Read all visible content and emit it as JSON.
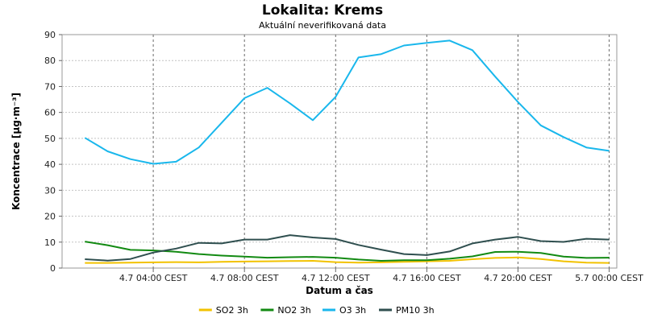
{
  "chart_data": {
    "type": "line",
    "title": "Lokalita: Krems",
    "subtitle": "Aktuální neverifikovaná data",
    "xlabel": "Datum a čas",
    "ylabel": "Koncentrace [µg·m⁻³]",
    "ylim": [
      0,
      90
    ],
    "yticks": [
      0,
      10,
      20,
      30,
      40,
      50,
      60,
      70,
      80,
      90
    ],
    "xlim": [
      "4.7 00:00",
      "5.7 00:20"
    ],
    "x": [
      "4.7 01:00",
      "4.7 02:00",
      "4.7 03:00",
      "4.7 04:00",
      "4.7 05:00",
      "4.7 06:00",
      "4.7 07:00",
      "4.7 08:00",
      "4.7 09:00",
      "4.7 10:00",
      "4.7 11:00",
      "4.7 12:00",
      "4.7 13:00",
      "4.7 14:00",
      "4.7 15:00",
      "4.7 16:00",
      "4.7 17:00",
      "4.7 18:00",
      "4.7 19:00",
      "4.7 20:00",
      "4.7 21:00",
      "4.7 22:00",
      "4.7 23:00",
      "5.7 00:00"
    ],
    "xticks": [
      {
        "value": "4.7 04:00",
        "label": "4.7 04:00 CEST"
      },
      {
        "value": "4.7 08:00",
        "label": "4.7 08:00 CEST"
      },
      {
        "value": "4.7 12:00",
        "label": "4.7 12:00 CEST"
      },
      {
        "value": "4.7 16:00",
        "label": "4.7 16:00 CEST"
      },
      {
        "value": "4.7 20:00",
        "label": "4.7 20:00 CEST"
      },
      {
        "value": "5.7 00:00",
        "label": "5.7 00:00 CEST"
      }
    ],
    "grid": true,
    "legend_position": "bottom",
    "series": [
      {
        "name": "SO2 3h",
        "color": "#f2c200",
        "values": [
          2.0,
          2.0,
          2.1,
          2.2,
          2.3,
          2.2,
          2.4,
          2.5,
          2.6,
          2.7,
          2.8,
          2.3,
          2.1,
          2.2,
          2.4,
          2.6,
          2.8,
          3.4,
          3.9,
          4.1,
          3.5,
          2.6,
          2.1,
          2.0
        ]
      },
      {
        "name": "NO2 3h",
        "color": "#128a12",
        "values": [
          10.2,
          8.8,
          7.0,
          6.8,
          6.3,
          5.4,
          4.8,
          4.4,
          4.0,
          4.2,
          4.3,
          4.0,
          3.3,
          2.8,
          3.0,
          3.0,
          3.6,
          4.5,
          6.2,
          6.3,
          5.8,
          4.4,
          3.9,
          4.0
        ]
      },
      {
        "name": "O3 3h",
        "color": "#19b7ec",
        "values": [
          50.2,
          45.0,
          42.0,
          40.2,
          41.0,
          46.5,
          56.0,
          65.5,
          69.5,
          63.5,
          57.0,
          66.0,
          81.2,
          82.5,
          85.8,
          86.8,
          87.7,
          84.0,
          73.8,
          64.0,
          55.0,
          50.5,
          46.5,
          45.2
        ]
      },
      {
        "name": "PM10 3h",
        "color": "#2f4f4f",
        "values": [
          3.4,
          2.9,
          3.5,
          6.0,
          7.5,
          9.7,
          9.5,
          11.0,
          11.0,
          12.7,
          11.8,
          11.2,
          8.9,
          7.1,
          5.4,
          5.0,
          6.4,
          9.5,
          11.0,
          12.0,
          10.4,
          10.1,
          11.3,
          11.0
        ]
      }
    ]
  }
}
